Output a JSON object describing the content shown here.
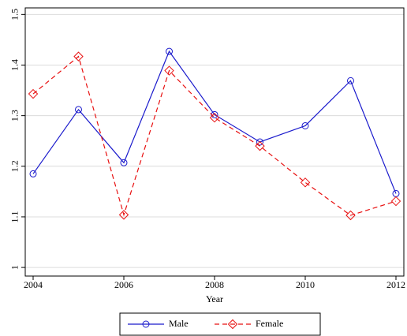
{
  "chart_data": {
    "type": "line",
    "x_label": "Year",
    "x": [
      2004,
      2005,
      2006,
      2007,
      2008,
      2009,
      2010,
      2011,
      2012
    ],
    "series": [
      {
        "name": "Male",
        "color": "#1a1acc",
        "marker": "circle",
        "linestyle": "solid",
        "values": [
          1.185,
          1.312,
          1.207,
          1.427,
          1.302,
          1.248,
          1.28,
          1.369,
          1.146
        ]
      },
      {
        "name": "Female",
        "color": "#e81010",
        "marker": "diamond",
        "linestyle": "dashed",
        "values": [
          1.343,
          1.417,
          1.104,
          1.389,
          1.296,
          1.24,
          1.168,
          1.103,
          1.131
        ]
      }
    ],
    "xlim": [
      2003.826,
      2012.174
    ],
    "xticks": [
      2004,
      2006,
      2008,
      2010,
      2012
    ],
    "ylim": [
      0.983,
      1.513
    ],
    "yticks": [
      1,
      1.1,
      1.2,
      1.3,
      1.4,
      1.5
    ],
    "grid": true,
    "legend": "bottom"
  }
}
